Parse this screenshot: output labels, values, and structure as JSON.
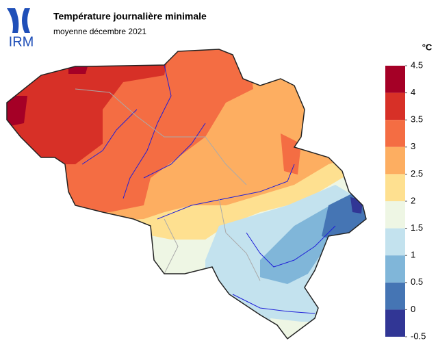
{
  "logo": "IRM",
  "title": "Température journalière minimale",
  "subtitle": "moyenne décembre 2021",
  "colorbar": {
    "unit": "°C",
    "ticks": [
      4.5,
      4,
      3.5,
      3,
      2.5,
      2,
      1.5,
      1,
      0.5,
      0,
      -0.5
    ],
    "colors": [
      "#a50026",
      "#d73027",
      "#f46d43",
      "#fdae61",
      "#fee090",
      "#eef6e4",
      "#c3e2ee",
      "#80b6d9",
      "#4575b4",
      "#313695"
    ]
  }
}
